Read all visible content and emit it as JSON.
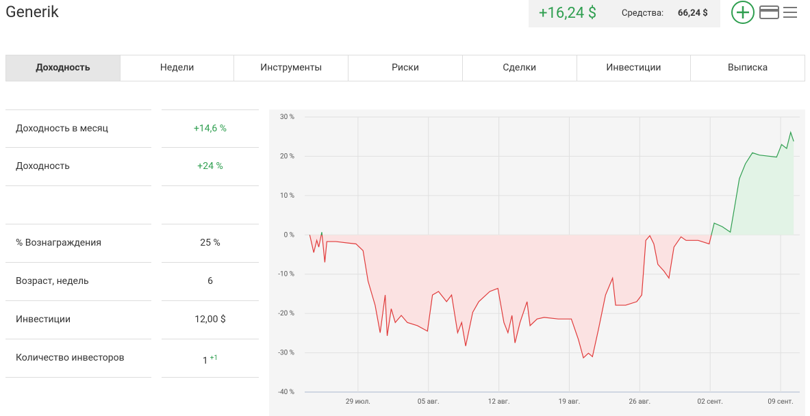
{
  "header": {
    "title": "Generik",
    "profit": "+16,24 $",
    "funds_label": "Средства:",
    "funds_value": "66,24 $"
  },
  "tabs": {
    "active": 0,
    "items": [
      "Доходность",
      "Недели",
      "Инструменты",
      "Риски",
      "Сделки",
      "Инвестиции",
      "Выписка"
    ]
  },
  "stats": [
    {
      "label": "Доходность в месяц",
      "value": "+14,6 %"
    },
    {
      "label": "Доходность",
      "value": "+24 %"
    },
    {
      "label": "% Вознаграждения",
      "value": "25 %"
    },
    {
      "label": "Возраст, недель",
      "value": "6"
    },
    {
      "label": "Инвестиции",
      "value": "12,00 $"
    },
    {
      "label": "Количество инвесторов",
      "value": "1",
      "badge": "+1"
    }
  ],
  "chart_data": {
    "type": "area",
    "x": [
      24.2,
      24.6,
      24.9,
      25.1,
      25.4,
      25.7,
      25.9,
      26.8,
      28.8,
      29.5,
      30.0,
      30.7,
      31.2,
      31.7,
      31.9,
      32.3,
      32.7,
      33.3,
      33.9,
      34.9,
      35.9,
      36.4,
      37.0,
      37.8,
      38.3,
      38.9,
      39.3,
      39.7,
      40.4,
      41.0,
      42.1,
      42.9,
      43.5,
      43.9,
      44.3,
      44.6,
      45.1,
      45.8,
      46.1,
      46.8,
      47.5,
      48.9,
      50.2,
      50.9,
      51.4,
      51.9,
      52.3,
      52.9,
      53.6,
      54.3,
      54.6,
      55.6,
      56.7,
      57.2,
      57.6,
      58.0,
      58.4,
      58.8,
      59.4,
      59.9,
      60.4,
      61.1,
      61.6,
      62.8,
      63.9,
      64.4,
      65.2,
      66.0,
      66.5,
      66.9,
      67.5,
      68.2,
      68.9,
      70.6,
      71.1,
      71.6,
      72.0,
      72.3
    ],
    "values": [
      0,
      -4.5,
      -1.4,
      -3.1,
      0.7,
      -7.0,
      -1.7,
      -1.7,
      -2.3,
      -4.0,
      -11.8,
      -17.9,
      -24.9,
      -15.3,
      -25.7,
      -18.8,
      -22.3,
      -20.5,
      -22.3,
      -23.1,
      -24.5,
      -15.3,
      -14.4,
      -17.0,
      -15.3,
      -24.9,
      -22.3,
      -28.3,
      -19.7,
      -17.0,
      -14.4,
      -13.6,
      -22.3,
      -24.9,
      -20.5,
      -27.5,
      -22.3,
      -17.0,
      -23.1,
      -21.4,
      -21.0,
      -21.4,
      -21.4,
      -26.6,
      -31.3,
      -30.1,
      -31.0,
      -24.0,
      -15.3,
      -11.0,
      -17.9,
      -17.9,
      -17.0,
      -15.3,
      -1.4,
      -0.2,
      -2.3,
      -7.5,
      -9.2,
      -11.0,
      -3.1,
      -0.5,
      -1.4,
      -1.4,
      -2.3,
      3.0,
      2.1,
      0.7,
      8.2,
      14.3,
      18.1,
      20.9,
      20.3,
      19.8,
      23.0,
      22.0,
      26.1,
      23.8
    ],
    "xlim": [
      23.7,
      72.9
    ],
    "xticks": [
      {
        "value": 29,
        "label": "29 июл."
      },
      {
        "value": 36,
        "label": "05 авг."
      },
      {
        "value": 43,
        "label": "12 авг."
      },
      {
        "value": 50,
        "label": "19 авг."
      },
      {
        "value": 57,
        "label": "26 авг."
      },
      {
        "value": 64,
        "label": "02 сент."
      },
      {
        "value": 71,
        "label": "09 сент."
      }
    ],
    "ylim": [
      -40,
      30
    ],
    "yticks": [
      {
        "value": 30,
        "label": "30 %"
      },
      {
        "value": 20,
        "label": "20 %"
      },
      {
        "value": 10,
        "label": "10 %"
      },
      {
        "value": 0,
        "label": "0 %"
      },
      {
        "value": -10,
        "label": "-10 %"
      },
      {
        "value": -20,
        "label": "-20 %"
      },
      {
        "value": -30,
        "label": "-30 %"
      },
      {
        "value": -40,
        "label": "-40 %"
      }
    ],
    "grid": true,
    "color_positive": "#2e9e4f",
    "color_negative": "#e03a3a",
    "fill_positive": "#e2f3e6",
    "fill_negative": "#fbe2e2"
  }
}
